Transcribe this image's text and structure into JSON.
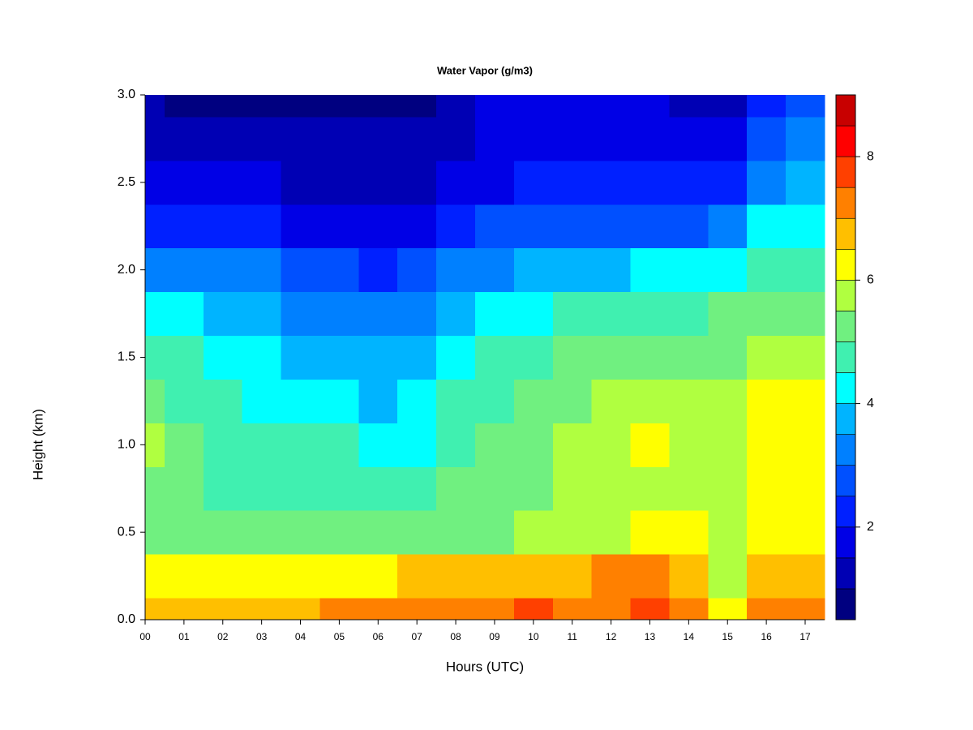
{
  "chart_data": {
    "type": "heatmap",
    "title": "Water Vapor (g/m3)",
    "xlabel": "Hours (UTC)",
    "ylabel": "Height (km)",
    "xlim": [
      0,
      17.5
    ],
    "ylim": [
      0,
      3
    ],
    "xticks": [
      {
        "value": 0,
        "label": "00"
      },
      {
        "value": 1,
        "label": "01"
      },
      {
        "value": 2,
        "label": "02"
      },
      {
        "value": 3,
        "label": "03"
      },
      {
        "value": 4,
        "label": "04"
      },
      {
        "value": 5,
        "label": "05"
      },
      {
        "value": 6,
        "label": "06"
      },
      {
        "value": 7,
        "label": "07"
      },
      {
        "value": 8,
        "label": "08"
      },
      {
        "value": 9,
        "label": "09"
      },
      {
        "value": 10,
        "label": "10"
      },
      {
        "value": 11,
        "label": "11"
      },
      {
        "value": 12,
        "label": "12"
      },
      {
        "value": 13,
        "label": "13"
      },
      {
        "value": 14,
        "label": "14"
      },
      {
        "value": 15,
        "label": "15"
      },
      {
        "value": 16,
        "label": "16"
      },
      {
        "value": 17,
        "label": "17"
      }
    ],
    "yticks": [
      {
        "value": 0,
        "label": "0.0"
      },
      {
        "value": 0.5,
        "label": "0.5"
      },
      {
        "value": 1,
        "label": "1.0"
      },
      {
        "value": 1.5,
        "label": "1.5"
      },
      {
        "value": 2,
        "label": "2.0"
      },
      {
        "value": 2.5,
        "label": "2.5"
      },
      {
        "value": 3,
        "label": "3.0"
      }
    ],
    "x": [
      0,
      1,
      2,
      3,
      4,
      5,
      6,
      7,
      8,
      9,
      10,
      11,
      12,
      13,
      14,
      15,
      16,
      17
    ],
    "y": [
      0,
      0.25,
      0.5,
      0.75,
      1,
      1.25,
      1.5,
      1.75,
      2,
      2.25,
      2.5,
      2.75,
      3
    ],
    "z": [
      [
        6.5,
        6.5,
        6.7,
        6.7,
        6.8,
        7.0,
        7.2,
        7.2,
        7.3,
        7.4,
        7.6,
        7.3,
        7.2,
        7.7,
        7.0,
        6.0,
        7.0,
        7.2
      ],
      [
        6.0,
        6.0,
        6.0,
        6.1,
        6.2,
        6.3,
        6.4,
        6.6,
        6.5,
        6.6,
        6.7,
        6.8,
        7.0,
        7.1,
        6.7,
        5.8,
        6.5,
        6.6
      ],
      [
        5.2,
        5.3,
        5.2,
        5.1,
        5.0,
        5.0,
        5.2,
        5.2,
        5.3,
        5.4,
        5.6,
        5.7,
        5.9,
        6.0,
        6.0,
        5.8,
        6.1,
        6.3
      ],
      [
        5.3,
        5.1,
        4.9,
        4.8,
        4.7,
        4.8,
        4.8,
        4.8,
        5.0,
        5.2,
        5.4,
        5.6,
        5.7,
        5.9,
        5.8,
        5.7,
        6.2,
        6.3
      ],
      [
        5.5,
        5.2,
        4.9,
        4.7,
        4.5,
        4.6,
        4.2,
        4.4,
        4.8,
        5.1,
        5.3,
        5.5,
        5.7,
        6.0,
        5.8,
        5.9,
        6.4,
        6.3
      ],
      [
        5.2,
        4.9,
        4.6,
        4.4,
        4.2,
        4.2,
        3.9,
        4.0,
        4.5,
        4.9,
        5.1,
        5.3,
        5.5,
        5.7,
        5.6,
        5.8,
        6.2,
        6.1
      ],
      [
        4.8,
        4.5,
        4.2,
        4.1,
        3.8,
        3.6,
        3.5,
        3.7,
        4.2,
        4.5,
        4.8,
        5.0,
        5.2,
        5.3,
        5.3,
        5.4,
        5.8,
        5.8
      ],
      [
        4.3,
        4.0,
        3.8,
        3.7,
        3.4,
        3.1,
        3.2,
        3.4,
        3.9,
        4.1,
        4.4,
        4.6,
        4.8,
        4.9,
        4.9,
        5.0,
        5.4,
        5.4
      ],
      [
        3.3,
        3.1,
        3.2,
        3.0,
        2.7,
        2.5,
        2.3,
        2.6,
        3.0,
        3.3,
        3.6,
        3.8,
        3.9,
        4.0,
        4.0,
        4.1,
        4.8,
        4.9
      ],
      [
        2.3,
        2.2,
        2.3,
        2.2,
        1.9,
        1.8,
        1.6,
        1.9,
        2.2,
        2.5,
        2.6,
        2.8,
        2.8,
        2.9,
        2.9,
        3.0,
        4.0,
        4.1
      ],
      [
        1.8,
        1.6,
        1.6,
        1.5,
        1.4,
        1.2,
        1.2,
        1.3,
        1.6,
        1.9,
        2.0,
        2.2,
        2.3,
        2.3,
        2.2,
        2.2,
        3.3,
        3.5
      ],
      [
        1.4,
        1.2,
        1.2,
        1.2,
        1.0,
        1.0,
        1.0,
        1.1,
        1.4,
        1.7,
        1.8,
        1.8,
        1.8,
        1.8,
        1.7,
        1.6,
        2.7,
        3.0
      ],
      [
        1.0,
        0.9,
        0.9,
        0.9,
        0.8,
        0.8,
        0.8,
        0.9,
        1.2,
        1.5,
        1.5,
        1.5,
        1.5,
        1.5,
        1.4,
        1.4,
        2.2,
        2.6
      ]
    ],
    "levels": [
      0.5,
      1,
      1.5,
      2,
      2.5,
      3,
      3.5,
      4,
      4.5,
      5,
      5.5,
      6,
      6.5,
      7,
      7.5,
      8,
      8.5,
      9
    ],
    "colors": [
      "#000080",
      "#0000b4",
      "#0000e6",
      "#0020ff",
      "#0050ff",
      "#0080ff",
      "#00b4ff",
      "#00ffff",
      "#40f0b0",
      "#70f080",
      "#b0ff40",
      "#ffff00",
      "#ffbf00",
      "#ff8000",
      "#ff4000",
      "#ff0000",
      "#c80000",
      "#800000"
    ],
    "colorbar_ticks": [
      2,
      4,
      6,
      8
    ]
  }
}
